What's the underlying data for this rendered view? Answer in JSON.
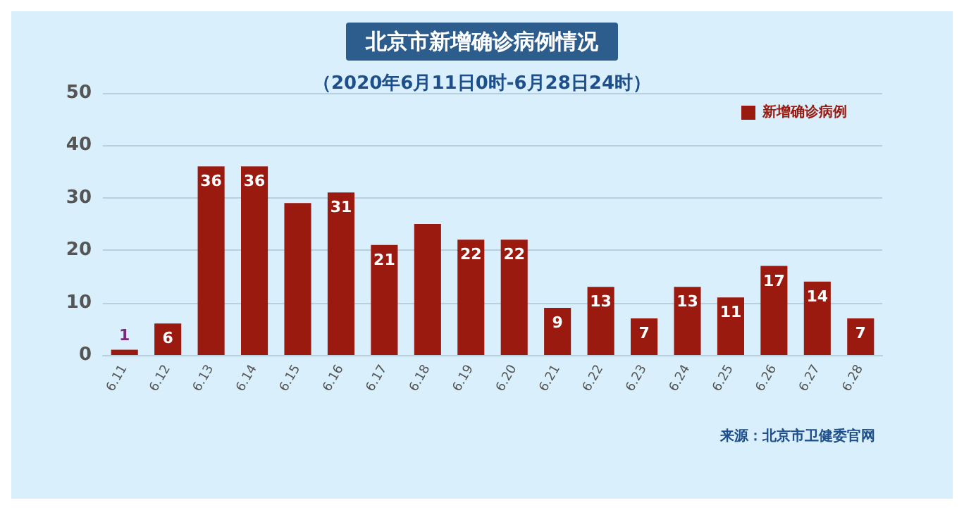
{
  "chart_data": {
    "type": "bar",
    "title": "北京市新增确诊病例情况",
    "subtitle": "（2020年6月11日0时-6月28日24时）",
    "categories": [
      "6.11",
      "6.12",
      "6.13",
      "6.14",
      "6.15",
      "6.16",
      "6.17",
      "6.18",
      "6.19",
      "6.20",
      "6.21",
      "6.22",
      "6.23",
      "6.24",
      "6.25",
      "6.26",
      "6.27",
      "6.28"
    ],
    "series": [
      {
        "name": "新增确诊病例",
        "color": "#9b1a10",
        "values": [
          1,
          6,
          36,
          36,
          29,
          31,
          21,
          25,
          22,
          22,
          9,
          13,
          7,
          13,
          11,
          17,
          14,
          7
        ],
        "value_labels": [
          "1",
          "6",
          "36",
          "36",
          null,
          "31",
          "21",
          null,
          "22",
          "22",
          "9",
          "13",
          "7",
          "13",
          "11",
          "17",
          "14",
          "7"
        ]
      }
    ],
    "ylim": [
      0,
      50
    ],
    "yticks": [
      0,
      10,
      20,
      30,
      40,
      50
    ],
    "grid": "y",
    "legend": "top right",
    "annotations": [
      "来源：北京市卫健委官网"
    ]
  }
}
